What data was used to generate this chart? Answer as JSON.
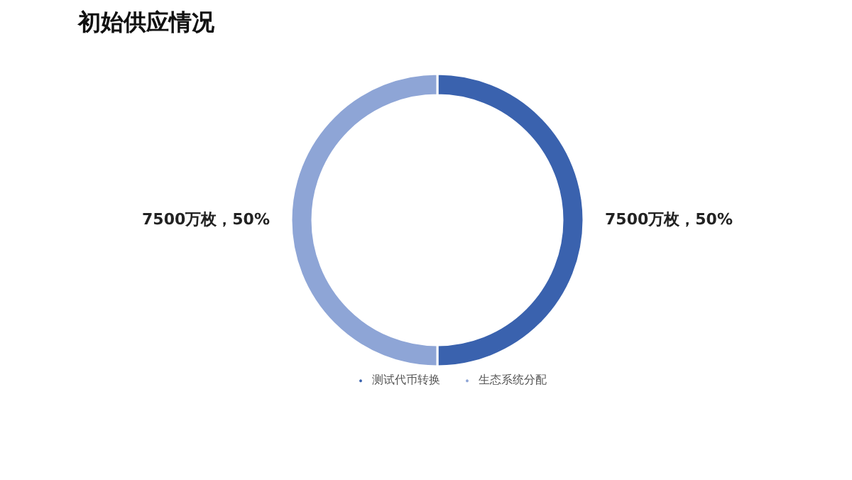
{
  "chart_data": {
    "type": "donut",
    "title": "初始供应情况",
    "categories": [
      "测试代币转换",
      "生态系统分配"
    ],
    "values": [
      7500,
      7500
    ],
    "colors": [
      "#3a62ae",
      "#8ea5d6"
    ],
    "value_labels": [
      "7500万枚，50%",
      "7500万枚，50%"
    ],
    "legend": "bottom"
  }
}
